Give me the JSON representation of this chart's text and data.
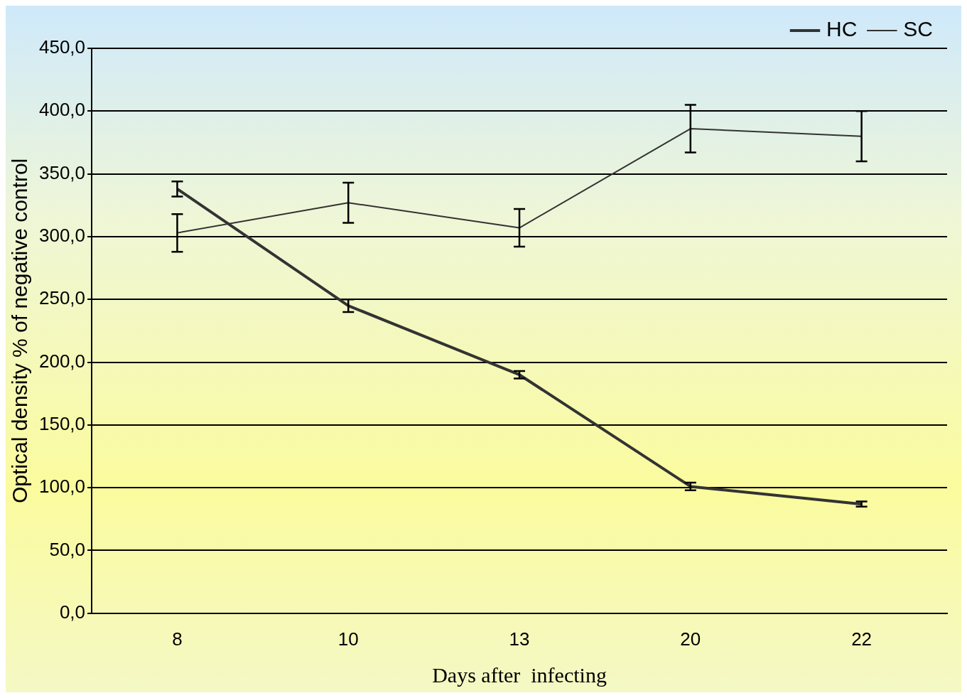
{
  "chart_data": {
    "type": "line",
    "xlabel": "Days after  infecting",
    "ylabel": "Optical density % of negative control",
    "categories": [
      "8",
      "10",
      "13",
      "20",
      "22"
    ],
    "series": [
      {
        "name": "HC",
        "color": "#333333",
        "values": [
          338,
          245,
          190,
          101,
          87
        ],
        "errors": [
          6,
          5,
          3,
          3,
          2
        ]
      },
      {
        "name": "SC",
        "color": "#333333",
        "values": [
          303,
          327,
          307,
          386,
          380
        ],
        "errors": [
          15,
          16,
          15,
          19,
          20
        ]
      }
    ],
    "ylim": [
      0,
      450
    ],
    "yticks": [
      {
        "value": 0,
        "label": "0,0"
      },
      {
        "value": 50,
        "label": "50,0"
      },
      {
        "value": 100,
        "label": "100,0"
      },
      {
        "value": 150,
        "label": "150,0"
      },
      {
        "value": 200,
        "label": "200,0"
      },
      {
        "value": 250,
        "label": "250,0"
      },
      {
        "value": 300,
        "label": "300,0"
      },
      {
        "value": 350,
        "label": "350,0"
      },
      {
        "value": 400,
        "label": "400,0"
      },
      {
        "value": 450,
        "label": "450,0"
      }
    ],
    "grid": "y",
    "legend": "top right"
  }
}
